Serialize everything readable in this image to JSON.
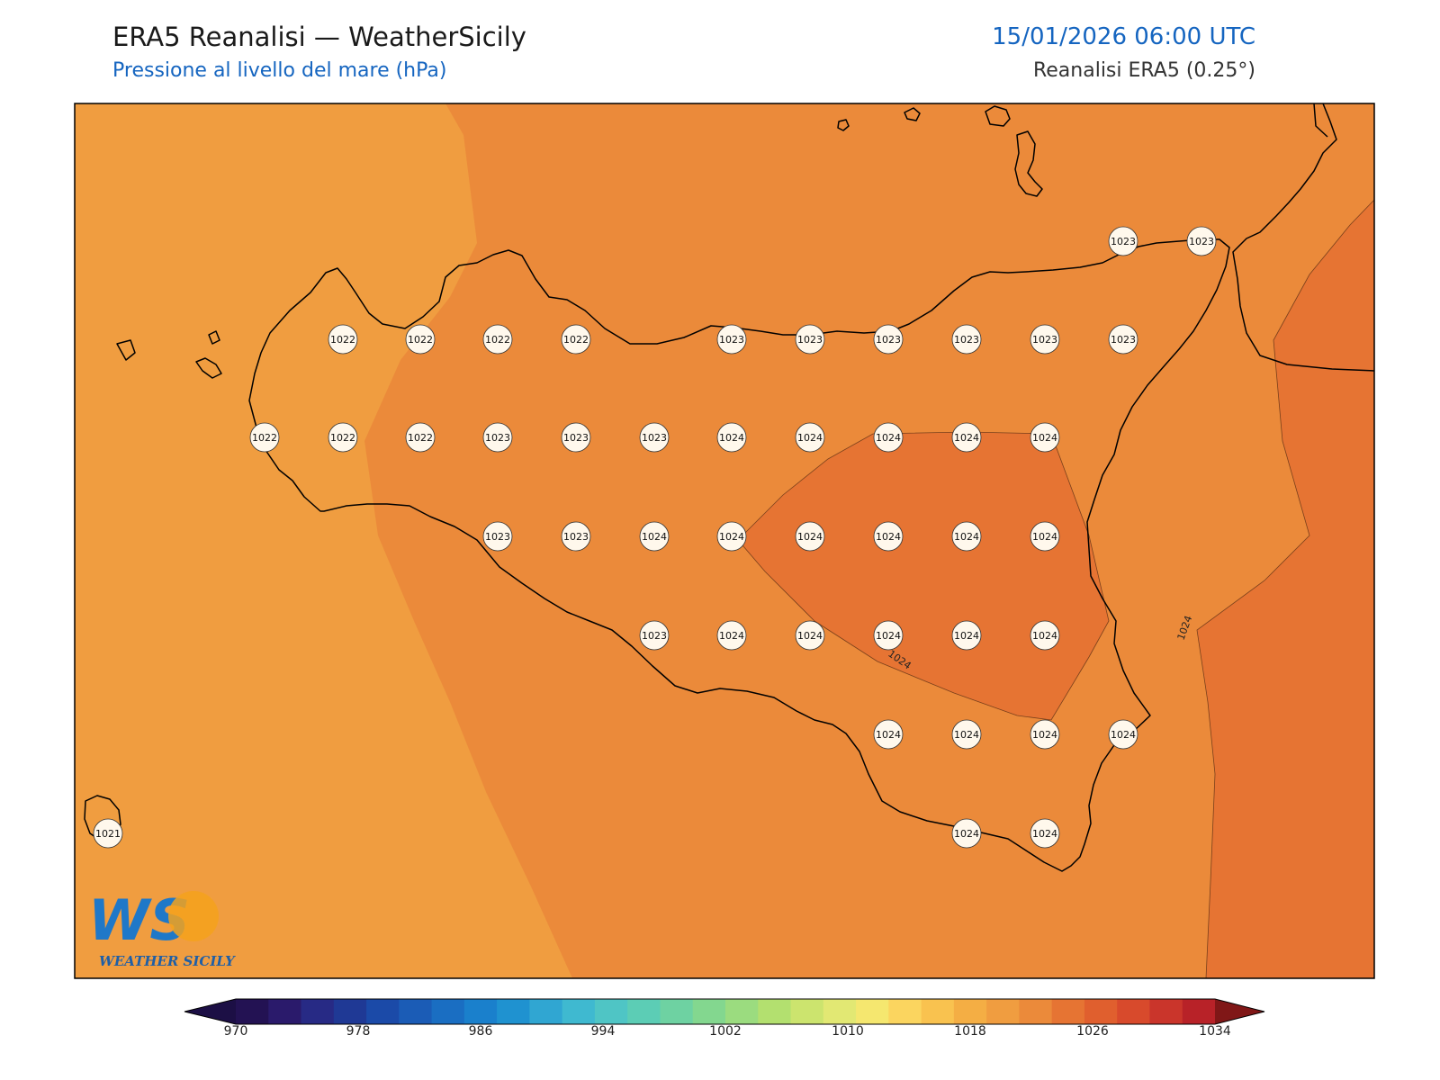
{
  "header": {
    "title": "ERA5 Reanalisi — WeatherSicily",
    "subtitle": "Pressione al livello del mare (hPa)",
    "timestamp": "15/01/2026 06:00 UTC",
    "source": "Reanalisi ERA5 (0.25°)"
  },
  "logo": {
    "letters": "WS",
    "text": "WEATHER SICILY"
  },
  "colors": {
    "field_1021": "#f09d40",
    "field_1023": "#eb8a3a",
    "field_1024": "#e67433",
    "station_fill": "#fff8ec",
    "coastline": "#000000",
    "title": "#1a1a1a",
    "accent": "#1565c0"
  },
  "contour_labels": [
    "1024",
    "1024"
  ],
  "stations": [
    {
      "value": "1022"
    },
    {
      "value": "1022"
    },
    {
      "value": "1022"
    },
    {
      "value": "1022"
    },
    {
      "value": "1023"
    },
    {
      "value": "1023"
    },
    {
      "value": "1023"
    },
    {
      "value": "1023"
    },
    {
      "value": "1023"
    },
    {
      "value": "1023"
    },
    {
      "value": "1023"
    },
    {
      "value": "1023"
    },
    {
      "value": "1022"
    },
    {
      "value": "1022"
    },
    {
      "value": "1022"
    },
    {
      "value": "1023"
    },
    {
      "value": "1023"
    },
    {
      "value": "1023"
    },
    {
      "value": "1024"
    },
    {
      "value": "1024"
    },
    {
      "value": "1024"
    },
    {
      "value": "1024"
    },
    {
      "value": "1024"
    },
    {
      "value": "1023"
    },
    {
      "value": "1023"
    },
    {
      "value": "1024"
    },
    {
      "value": "1024"
    },
    {
      "value": "1024"
    },
    {
      "value": "1024"
    },
    {
      "value": "1024"
    },
    {
      "value": "1024"
    },
    {
      "value": "1023"
    },
    {
      "value": "1024"
    },
    {
      "value": "1024"
    },
    {
      "value": "1024"
    },
    {
      "value": "1024"
    },
    {
      "value": "1024"
    },
    {
      "value": "1024"
    },
    {
      "value": "1024"
    },
    {
      "value": "1024"
    },
    {
      "value": "1024"
    },
    {
      "value": "1024"
    },
    {
      "value": "1024"
    },
    {
      "value": "1021"
    }
  ],
  "colorbar": {
    "ticks": [
      "970",
      "978",
      "986",
      "994",
      "1002",
      "1010",
      "1018",
      "1026",
      "1034"
    ],
    "colors": [
      "#231253",
      "#2a1a6b",
      "#272a85",
      "#1f3995",
      "#1b4aa8",
      "#1b5cb6",
      "#1a6ec2",
      "#1a80cc",
      "#1f92d0",
      "#30a6d2",
      "#3fb9d0",
      "#4fc5c5",
      "#5ccdb5",
      "#6ed2a2",
      "#83d78f",
      "#9bdc7f",
      "#b3e06f",
      "#cce46e",
      "#e2e873",
      "#f5e76f",
      "#fbd55f",
      "#f9c24f",
      "#f4ae44",
      "#f09d40",
      "#eb8a3a",
      "#e67433",
      "#e05f2e",
      "#d84a2c",
      "#ca352b",
      "#b82228"
    ],
    "extend_low": "#1c0f45",
    "extend_high": "#801717"
  }
}
